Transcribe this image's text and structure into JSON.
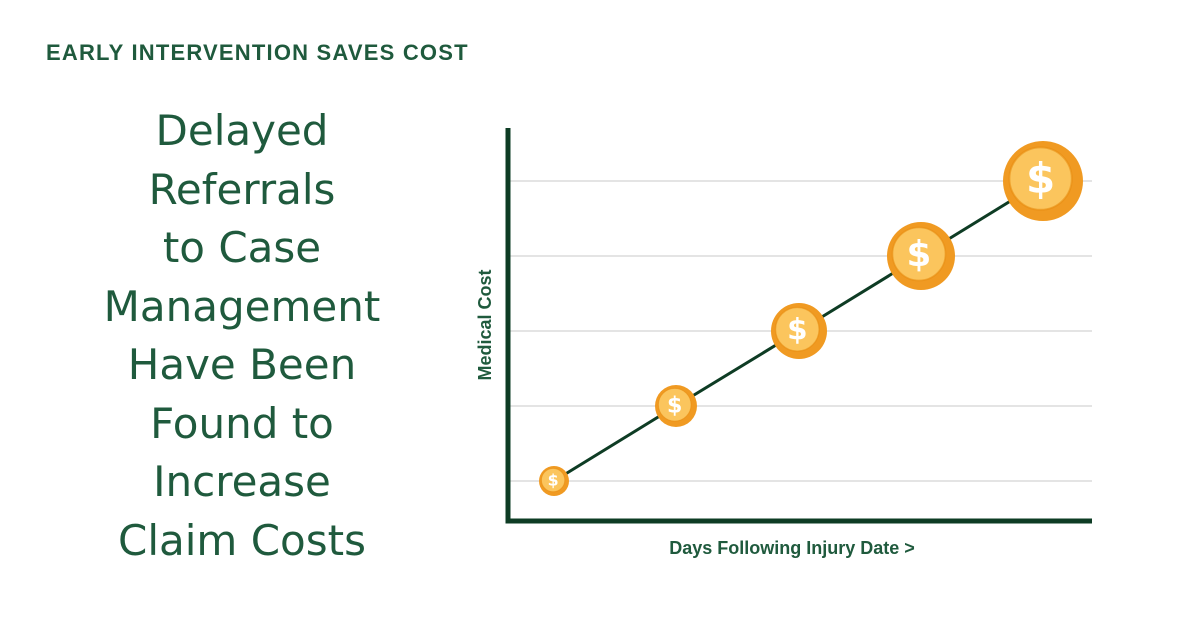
{
  "header": {
    "eyebrow": "EARLY INTERVENTION SAVES COST"
  },
  "headline": {
    "lines": [
      "Delayed",
      "Referrals",
      "to Case",
      "Management",
      "Have Been",
      "Found to",
      "Increase",
      "Claim Costs"
    ]
  },
  "colors": {
    "text_green": "#1f5a3d",
    "axis_green": "#0e3c24",
    "coin_outer": "#f09a22",
    "coin_inner": "#fbc55d",
    "coin_symbol": "#ffffff",
    "grid": "#d3d3d3"
  },
  "chart_data": {
    "type": "line",
    "xlabel": "Days Following Injury Date >",
    "ylabel": "Medical Cost",
    "x": [
      1,
      2,
      3,
      4,
      5
    ],
    "values": [
      1,
      2,
      3,
      4,
      5
    ],
    "marker_symbol": "$",
    "marker_icon": "dollar-coin-icon",
    "grid": true,
    "tick_labels_shown": false
  }
}
